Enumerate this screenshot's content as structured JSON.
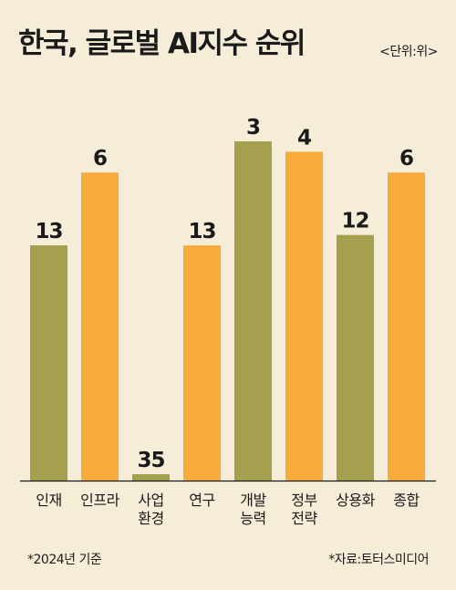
{
  "title": "한국, 글로벌 AI지수 순위",
  "unit": "<단위:위>",
  "footnote_left": "*2024년 기준",
  "footnote_right": "*자료:토터스미디어",
  "colors": {
    "background": "#f6edd9",
    "olive": "#a5a04f",
    "orange": "#f6ab3b",
    "text": "#1a1a1a",
    "axis": "#1a1a1a"
  },
  "chart_data": {
    "type": "bar",
    "title": "한국, 글로벌 AI지수 순위",
    "categories": [
      "인재",
      "인프라",
      "사업 환경",
      "연구",
      "개발 능력",
      "정부 전략",
      "상용화",
      "종합"
    ],
    "category_lines": [
      [
        "인재"
      ],
      [
        "인프라"
      ],
      [
        "사업",
        "환경"
      ],
      [
        "연구"
      ],
      [
        "개발",
        "능력"
      ],
      [
        "정부",
        "전략"
      ],
      [
        "상용화"
      ],
      [
        "종합"
      ]
    ],
    "values": [
      13,
      6,
      35,
      13,
      3,
      4,
      12,
      6
    ],
    "bar_colors": [
      "olive",
      "orange",
      "olive",
      "orange",
      "olive",
      "orange",
      "olive",
      "orange"
    ],
    "value_axis": "rank (lower value drawn as taller bar)",
    "grid": false,
    "legend": "none"
  }
}
